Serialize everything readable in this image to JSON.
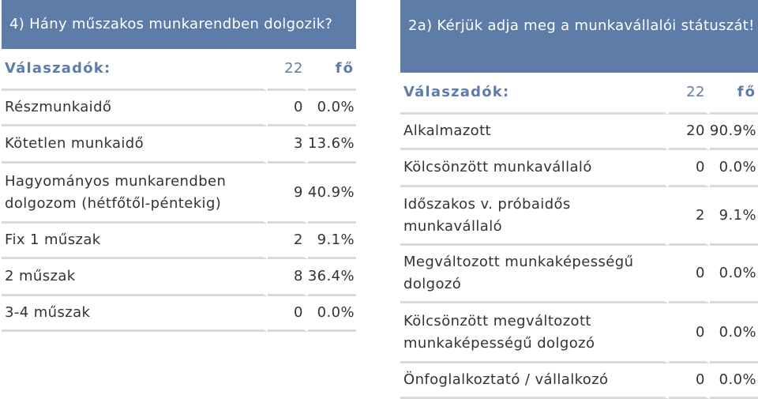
{
  "left": {
    "question": "4) Hány műszakos munkarendben dolgozik?",
    "respondents_label": "Válaszadók:",
    "respondents_count": "22",
    "respondents_unit": "fő",
    "rows": [
      {
        "label": "Részmunkaidő",
        "count": "0",
        "percent": "0.0%"
      },
      {
        "label": "Kötetlen munkaidő",
        "count": "3",
        "percent": "13.6%"
      },
      {
        "label": "Hagyományos munkarendben dolgozom (hétfőtől-péntekig)",
        "count": "9",
        "percent": "40.9%"
      },
      {
        "label": "Fix 1 műszak",
        "count": "2",
        "percent": "9.1%"
      },
      {
        "label": "2 műszak",
        "count": "8",
        "percent": "36.4%"
      },
      {
        "label": "3-4 műszak",
        "count": "0",
        "percent": "0.0%"
      }
    ]
  },
  "right": {
    "question": "2a) Kérjük adja meg a munkavállalói státuszát!",
    "respondents_label": "Válaszadók:",
    "respondents_count": "22",
    "respondents_unit": "fő",
    "rows": [
      {
        "label": "Alkalmazott",
        "count": "20",
        "percent": "90.9%"
      },
      {
        "label": "Kölcsönzött munkavállaló",
        "count": "0",
        "percent": "0.0%"
      },
      {
        "label": "Időszakos v. próbaidős munkavállaló",
        "count": "2",
        "percent": "9.1%"
      },
      {
        "label": "Megváltozott munkaképességű dolgozó",
        "count": "0",
        "percent": "0.0%"
      },
      {
        "label": "Kölcsönzött megváltozott munkaképességű dolgozó",
        "count": "0",
        "percent": "0.0%"
      },
      {
        "label": "Önfoglalkoztató / vállalkozó",
        "count": "0",
        "percent": "0.0%"
      }
    ]
  },
  "colors": {
    "header_bg": "#5e7ca8",
    "divider": "#dadada",
    "accent_text": "#5e7ca8"
  }
}
